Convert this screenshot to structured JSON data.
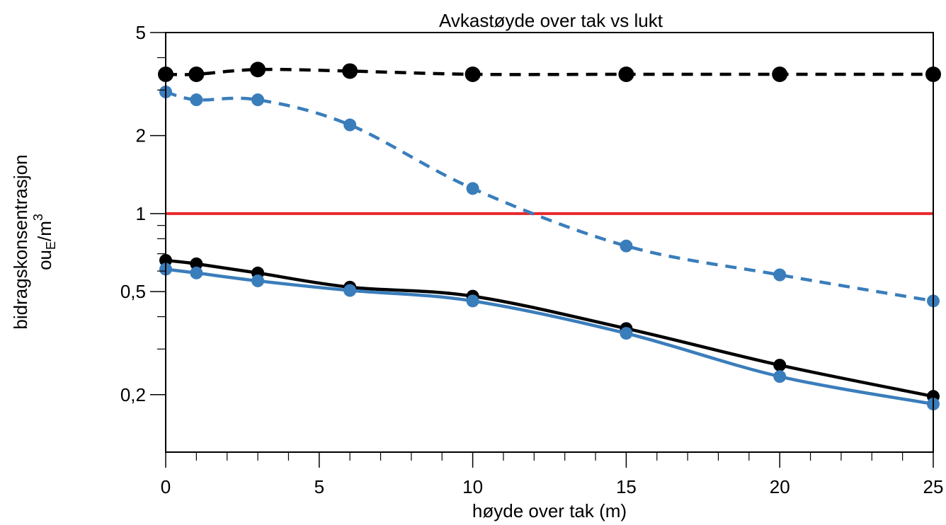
{
  "chart_data": {
    "type": "line",
    "title": "Avkastøyde over tak vs lukt",
    "xlabel": "høyde over tak (m)",
    "ylabel": "bidragskonsentrasjon",
    "ylabel_unit_base": "ou",
    "ylabel_unit_sub": "E",
    "ylabel_unit_rest": "/m",
    "ylabel_unit_sup": "3",
    "xlim": [
      0,
      25
    ],
    "ylim": [
      0.12,
      5
    ],
    "yscale": "log",
    "grid": false,
    "x_ticks": [
      0,
      5,
      10,
      15,
      20,
      25
    ],
    "x_tick_labels": [
      "0",
      "5",
      "10",
      "15",
      "20",
      "25"
    ],
    "x_minor_ticks": [
      1,
      2,
      3,
      4,
      6,
      7,
      8,
      9,
      11,
      12,
      13,
      14,
      16,
      17,
      18,
      19,
      21,
      22,
      23,
      24
    ],
    "y_ticks": [
      0.2,
      0.5,
      1,
      2,
      5
    ],
    "y_tick_labels": [
      "0,2",
      "0,5",
      "1",
      "2",
      "5"
    ],
    "y_minor_ticks": [
      0.3,
      0.4,
      0.6,
      0.7,
      0.8,
      0.9,
      3,
      4
    ],
    "threshold": {
      "y": 1,
      "color": "#e8262a"
    },
    "series": [
      {
        "x": [
          0,
          1,
          3,
          6,
          10,
          15,
          20,
          25
        ],
        "values": [
          3.45,
          3.45,
          3.6,
          3.55,
          3.45,
          3.45,
          3.45,
          3.45
        ],
        "color": "#000000",
        "dash": true,
        "marker_r": 11
      },
      {
        "x": [
          0,
          1,
          3,
          6,
          10,
          15,
          20,
          25
        ],
        "values": [
          2.95,
          2.75,
          2.75,
          2.2,
          1.25,
          0.75,
          0.58,
          0.46
        ],
        "color": "#3a7dbb",
        "dash": true,
        "marker_r": 9
      },
      {
        "x": [
          0,
          1,
          3,
          6,
          10,
          15,
          20,
          25
        ],
        "values": [
          0.66,
          0.64,
          0.59,
          0.52,
          0.48,
          0.36,
          0.26,
          0.197
        ],
        "color": "#000000",
        "dash": false,
        "marker_r": 9
      },
      {
        "x": [
          0,
          1,
          3,
          6,
          10,
          15,
          20,
          25
        ],
        "values": [
          0.61,
          0.59,
          0.55,
          0.505,
          0.46,
          0.345,
          0.235,
          0.184
        ],
        "color": "#3a7dbb",
        "dash": false,
        "marker_r": 9
      }
    ]
  }
}
